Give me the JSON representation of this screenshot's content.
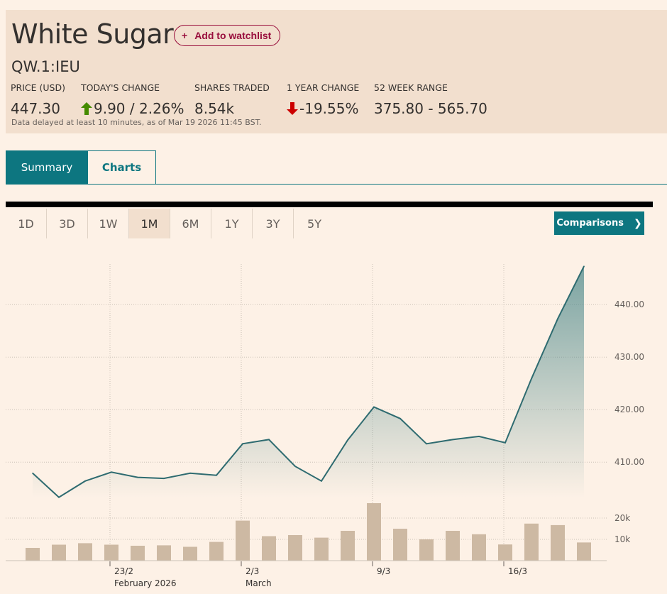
{
  "header": {
    "title": "White Sugar",
    "watchlist_label": "Add to watchlist",
    "symbol": "QW.1:IEU",
    "stats": {
      "price_label": "PRICE (USD)",
      "price_value": "447.30",
      "today_change_label": "TODAY'S CHANGE",
      "today_change_value": "9.90 / 2.26%",
      "shares_traded_label": "SHARES TRADED",
      "shares_traded_value": "8.54k",
      "year_change_label": "1 YEAR CHANGE",
      "year_change_value": "-19.55%",
      "range_label": "52 WEEK RANGE",
      "range_value": "375.80 - 565.70"
    },
    "delayed_note": "Data delayed at least 10 minutes, as of Mar 19 2026 11:45 BST."
  },
  "tabs": {
    "summary": "Summary",
    "charts": "Charts"
  },
  "periods": [
    "1D",
    "3D",
    "1W",
    "1M",
    "6M",
    "1Y",
    "3Y",
    "5Y"
  ],
  "active_period": "1M",
  "comparisons_label": "Comparisons",
  "colors": {
    "accent": "#0d7680",
    "up": "#458b00",
    "down": "#cc0000",
    "line": "#2e6b70",
    "volume": "#cdb9a3"
  },
  "chart_data": {
    "type": "line",
    "price_axis": {
      "ticks": [
        410,
        420,
        430,
        440
      ],
      "tick_labels": [
        "410.00",
        "420.00",
        "430.00",
        "440.00"
      ],
      "ylim": [
        403,
        448
      ]
    },
    "volume_axis": {
      "ticks": [
        10000,
        20000
      ],
      "tick_labels": [
        "10k",
        "20k"
      ]
    },
    "x_ticks": [
      {
        "label": "23/2",
        "sublabel": "February 2026"
      },
      {
        "label": "2/3",
        "sublabel": "March"
      },
      {
        "label": "9/3",
        "sublabel": ""
      },
      {
        "label": "16/3",
        "sublabel": ""
      }
    ],
    "x_tick_index": [
      3,
      8,
      13,
      18
    ],
    "series": [
      {
        "price": [
          407.9,
          403.3,
          406.4,
          408.1,
          407.1,
          406.9,
          407.9,
          407.5,
          413.5,
          414.3,
          409.2,
          406.4,
          414.2,
          420.5,
          418.3,
          413.5,
          414.3,
          414.9,
          413.7,
          425.9,
          437.3,
          447.3
        ]
      },
      {
        "volume": [
          6000,
          7500,
          8200,
          7500,
          7000,
          7200,
          6500,
          8800,
          18800,
          11500,
          12000,
          10800,
          14000,
          27000,
          15000,
          10000,
          14000,
          12400,
          7600,
          17400,
          16700,
          8540
        ]
      }
    ],
    "grid": true
  }
}
